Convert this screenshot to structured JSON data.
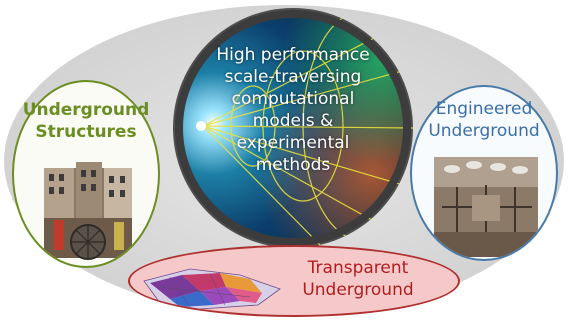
{
  "center": {
    "lines": [
      "High performance",
      "scale-traversing",
      "computational",
      "models &",
      "experimental",
      "methods"
    ]
  },
  "left": {
    "lines": [
      "Underground",
      "Structures"
    ],
    "color": "#6b8e23"
  },
  "right": {
    "lines": [
      "Engineered",
      "Underground"
    ],
    "color": "#3a6fa8"
  },
  "bottom": {
    "lines": [
      "Transparent",
      "Underground"
    ],
    "color": "#b01e1e"
  }
}
